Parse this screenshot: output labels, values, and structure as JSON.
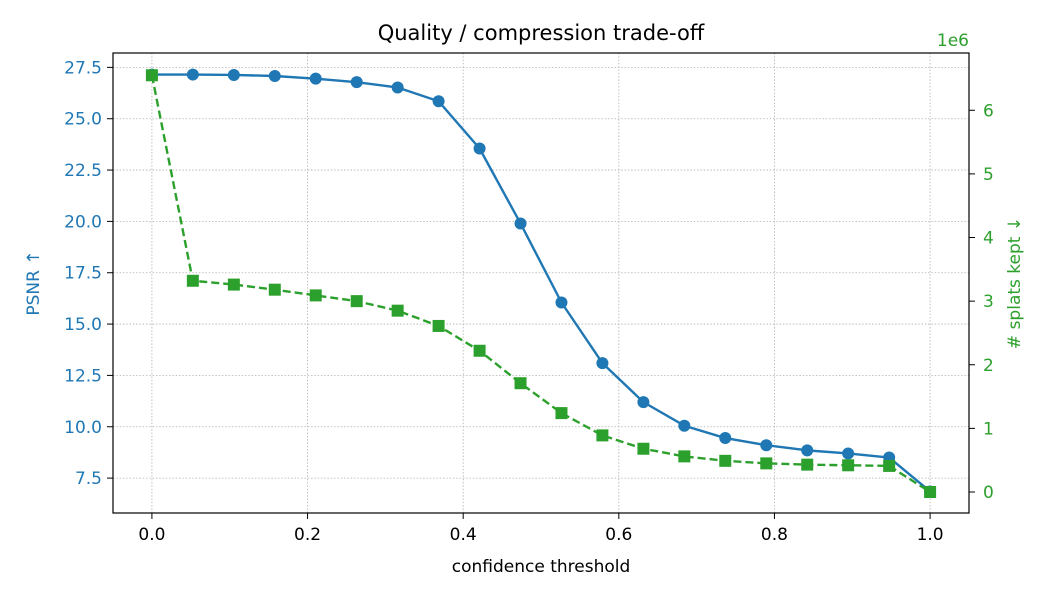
{
  "chart_data": {
    "type": "line",
    "title": "Quality / compression trade-off",
    "xlabel": "confidence threshold",
    "ylabel_left": "PSNR ↑",
    "ylabel_right": "# splats kept ↓",
    "right_axis_multiplier": "1e6",
    "xlim": [
      -0.05,
      1.05
    ],
    "ylim_left": [
      5.8,
      28.2
    ],
    "ylim_right": [
      -0.33,
      6.9
    ],
    "x_ticks": [
      0.0,
      0.2,
      0.4,
      0.6,
      0.8,
      1.0
    ],
    "x_tick_labels": [
      "0.0",
      "0.2",
      "0.4",
      "0.6",
      "0.8",
      "1.0"
    ],
    "y_ticks_left": [
      7.5,
      10.0,
      12.5,
      15.0,
      17.5,
      20.0,
      22.5,
      25.0,
      27.5
    ],
    "y_tick_labels_left": [
      "7.5",
      "10.0",
      "12.5",
      "15.0",
      "17.5",
      "20.0",
      "22.5",
      "25.0",
      "27.5"
    ],
    "y_ticks_right": [
      0,
      1,
      2,
      3,
      4,
      5,
      6
    ],
    "y_tick_labels_right": [
      "0",
      "1",
      "2",
      "3",
      "4",
      "5",
      "6"
    ],
    "grid": true,
    "x": [
      0.0,
      0.0526,
      0.1053,
      0.1579,
      0.2105,
      0.2632,
      0.3158,
      0.3684,
      0.4211,
      0.4737,
      0.5263,
      0.5789,
      0.6316,
      0.6842,
      0.7368,
      0.7895,
      0.8421,
      0.8947,
      0.9474,
      1.0
    ],
    "series": [
      {
        "axis": "left",
        "marker": "circle",
        "linestyle": "solid",
        "color": "#1f77b4",
        "values": [
          27.15,
          27.15,
          27.13,
          27.08,
          26.95,
          26.78,
          26.52,
          25.85,
          23.55,
          19.9,
          16.05,
          13.1,
          11.2,
          10.05,
          9.45,
          9.1,
          8.85,
          8.7,
          8.5,
          6.85
        ]
      },
      {
        "axis": "right",
        "marker": "square",
        "linestyle": "dashed",
        "color": "#2ca02c",
        "values": [
          6.55,
          3.32,
          3.26,
          3.18,
          3.09,
          3.0,
          2.85,
          2.61,
          2.22,
          1.71,
          1.24,
          0.89,
          0.68,
          0.56,
          0.49,
          0.45,
          0.43,
          0.42,
          0.41,
          0.0
        ]
      }
    ]
  }
}
